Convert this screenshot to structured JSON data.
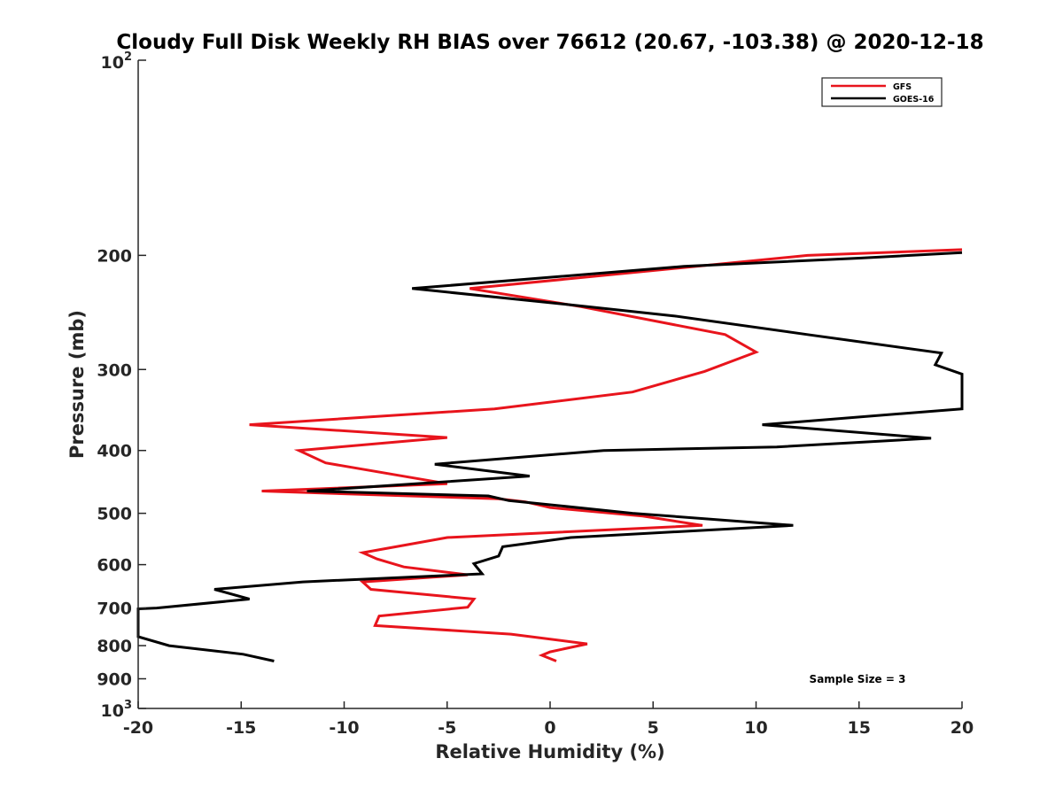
{
  "chart_data": {
    "type": "line",
    "title": "Cloudy Full Disk Weekly RH BIAS over 76612 (20.67, -103.38) @ 2020-12-18",
    "xlabel": "Relative Humidity (%)",
    "ylabel": "Pressure (mb)",
    "xlim": [
      -20,
      20
    ],
    "ylim": [
      100,
      1000
    ],
    "yscale": "log",
    "y_reversed": true,
    "x_ticks": [
      "-20",
      "-15",
      "-10",
      "-5",
      "0",
      "5",
      "10",
      "15",
      "20"
    ],
    "y_ticks": [
      {
        "value": 100,
        "base": "10",
        "exp": "2"
      },
      {
        "value": 200,
        "label": "200"
      },
      {
        "value": 300,
        "label": "300"
      },
      {
        "value": 400,
        "label": "400"
      },
      {
        "value": 500,
        "label": "500"
      },
      {
        "value": 600,
        "label": "600"
      },
      {
        "value": 700,
        "label": "700"
      },
      {
        "value": 800,
        "label": "800"
      },
      {
        "value": 900,
        "label": "900"
      },
      {
        "value": 1000,
        "base": "10",
        "exp": "3"
      }
    ],
    "legend_position": "top-right",
    "annotation": "Sample Size = 3",
    "series": [
      {
        "name": "GFS",
        "color": "#e8141c",
        "points": [
          [
            20.5,
            196
          ],
          [
            12.5,
            200
          ],
          [
            -3.9,
            225
          ],
          [
            1.5,
            240
          ],
          [
            8.5,
            265
          ],
          [
            10.0,
            282
          ],
          [
            7.5,
            302
          ],
          [
            4.0,
            325
          ],
          [
            -2.7,
            345
          ],
          [
            -14.6,
            365
          ],
          [
            -5.0,
            382
          ],
          [
            -12.2,
            400
          ],
          [
            -10.9,
            418
          ],
          [
            -5.0,
            450
          ],
          [
            -14.0,
            462
          ],
          [
            -2.5,
            475
          ],
          [
            -1.2,
            480
          ],
          [
            0,
            490
          ],
          [
            4.5,
            505
          ],
          [
            7.4,
            522
          ],
          [
            -5.0,
            545
          ],
          [
            -9.1,
            575
          ],
          [
            -8.4,
            588
          ],
          [
            -7.1,
            605
          ],
          [
            -4.0,
            622
          ],
          [
            -9.1,
            638
          ],
          [
            -8.7,
            655
          ],
          [
            -3.7,
            678
          ],
          [
            -4.0,
            698
          ],
          [
            -8.3,
            720
          ],
          [
            -8.5,
            745
          ],
          [
            -1.9,
            768
          ],
          [
            1.8,
            795
          ],
          [
            0.0,
            818
          ],
          [
            -0.4,
            828
          ],
          [
            0.3,
            845
          ]
        ]
      },
      {
        "name": "GOES-16",
        "color": "#000000",
        "points": [
          [
            20.5,
            198
          ],
          [
            15.0,
            202
          ],
          [
            6.5,
            208
          ],
          [
            -6.7,
            225
          ],
          [
            0.8,
            238
          ],
          [
            6.0,
            248
          ],
          [
            12.5,
            265
          ],
          [
            19.0,
            283
          ],
          [
            18.7,
            295
          ],
          [
            20.5,
            305
          ],
          [
            20.5,
            345
          ],
          [
            10.3,
            365
          ],
          [
            18.5,
            383
          ],
          [
            11.0,
            395
          ],
          [
            2.6,
            400
          ],
          [
            -5.6,
            420
          ],
          [
            -1.0,
            438
          ],
          [
            -11.8,
            462
          ],
          [
            -3.0,
            470
          ],
          [
            -2.0,
            478
          ],
          [
            0.0,
            485
          ],
          [
            4.0,
            500
          ],
          [
            11.8,
            522
          ],
          [
            1.0,
            545
          ],
          [
            -2.3,
            563
          ],
          [
            -2.5,
            582
          ],
          [
            -3.7,
            598
          ],
          [
            -3.3,
            620
          ],
          [
            -12.0,
            638
          ],
          [
            -16.3,
            655
          ],
          [
            -14.6,
            678
          ],
          [
            -19.1,
            700
          ],
          [
            -20.5,
            702
          ],
          [
            -20.5,
            775
          ],
          [
            -18.5,
            800
          ],
          [
            -14.9,
            825
          ],
          [
            -13.4,
            845
          ]
        ]
      }
    ]
  }
}
